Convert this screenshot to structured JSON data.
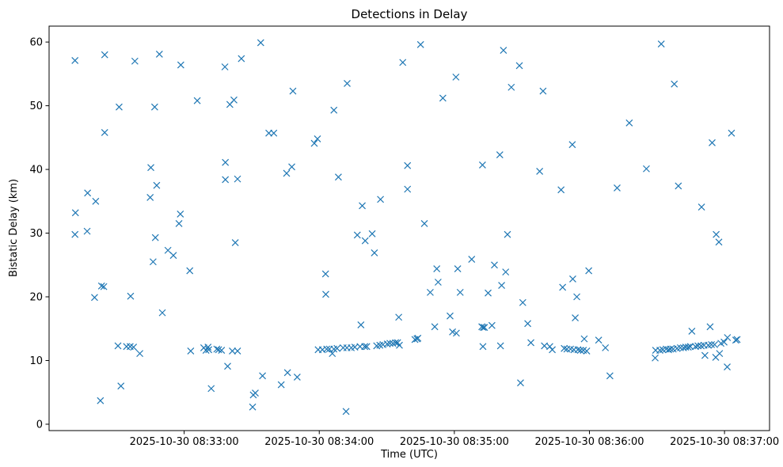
{
  "chart_data": {
    "type": "scatter",
    "title": "Detections in Delay",
    "xlabel": "Time (UTC)",
    "ylabel": "Bistatic Delay (km)",
    "x_unit": "seconds after 2025-10-30 08:32:00",
    "xlim": [
      -30,
      290
    ],
    "ylim": [
      -1,
      62.5
    ],
    "xticks": [
      {
        "value": 30,
        "label": "2025-10-30 08:33:00"
      },
      {
        "value": 90,
        "label": "2025-10-30 08:34:00"
      },
      {
        "value": 150,
        "label": "2025-10-30 08:35:00"
      },
      {
        "value": 210,
        "label": "2025-10-30 08:36:00"
      },
      {
        "value": 270,
        "label": "2025-10-30 08:37:00"
      }
    ],
    "yticks": [
      {
        "value": 0,
        "label": "0"
      },
      {
        "value": 10,
        "label": "10"
      },
      {
        "value": 20,
        "label": "20"
      },
      {
        "value": 30,
        "label": "30"
      },
      {
        "value": 40,
        "label": "40"
      },
      {
        "value": 50,
        "label": "50"
      },
      {
        "value": 60,
        "label": "60"
      }
    ],
    "marker": "x",
    "color": "#1f77b4",
    "series": [
      {
        "name": "detections",
        "points": [
          [
            -18.5,
            57.1
          ],
          [
            -18.5,
            29.8
          ],
          [
            -18.3,
            33.2
          ],
          [
            -12.9,
            36.3
          ],
          [
            -13.1,
            30.3
          ],
          [
            -9.3,
            35.0
          ],
          [
            -9.8,
            19.9
          ],
          [
            -6.7,
            21.7
          ],
          [
            -5.7,
            21.6
          ],
          [
            -5.3,
            58.0
          ],
          [
            -5.3,
            45.8
          ],
          [
            -7.2,
            3.7
          ],
          [
            1.1,
            49.8
          ],
          [
            0.6,
            12.3
          ],
          [
            1.9,
            6.0
          ],
          [
            4.4,
            12.2
          ],
          [
            6.0,
            12.2
          ],
          [
            7.5,
            12.1
          ],
          [
            6.2,
            20.1
          ],
          [
            8.1,
            57.0
          ],
          [
            10.3,
            11.1
          ],
          [
            15.2,
            40.3
          ],
          [
            14.9,
            35.6
          ],
          [
            16.2,
            25.5
          ],
          [
            17.2,
            29.3
          ],
          [
            16.9,
            49.8
          ],
          [
            17.8,
            37.5
          ],
          [
            19.0,
            58.1
          ],
          [
            20.3,
            17.5
          ],
          [
            22.8,
            27.3
          ],
          [
            25.2,
            26.5
          ],
          [
            27.7,
            31.5
          ],
          [
            28.3,
            33.0
          ],
          [
            28.5,
            56.4
          ],
          [
            32.5,
            24.1
          ],
          [
            32.9,
            11.5
          ],
          [
            35.8,
            50.8
          ],
          [
            38.7,
            12.0
          ],
          [
            39.7,
            11.6
          ],
          [
            40.6,
            12.1
          ],
          [
            40.9,
            11.7
          ],
          [
            42.0,
            5.6
          ],
          [
            44.5,
            11.8
          ],
          [
            45.3,
            11.7
          ],
          [
            46.6,
            11.6
          ],
          [
            48.1,
            56.1
          ],
          [
            48.3,
            41.1
          ],
          [
            48.3,
            38.4
          ],
          [
            49.3,
            9.1
          ],
          [
            50.3,
            50.2
          ],
          [
            51.4,
            11.5
          ],
          [
            52.1,
            50.9
          ],
          [
            52.7,
            28.5
          ],
          [
            53.7,
            11.5
          ],
          [
            53.7,
            38.5
          ],
          [
            55.4,
            57.4
          ],
          [
            60.4,
            2.7
          ],
          [
            60.7,
            4.6
          ],
          [
            61.6,
            4.9
          ],
          [
            64.0,
            59.9
          ],
          [
            64.8,
            7.6
          ],
          [
            67.6,
            45.7
          ],
          [
            69.8,
            45.7
          ],
          [
            73.1,
            6.2
          ],
          [
            75.5,
            39.4
          ],
          [
            75.9,
            8.1
          ],
          [
            77.8,
            40.4
          ],
          [
            78.3,
            52.3
          ],
          [
            80.2,
            7.4
          ],
          [
            87.8,
            44.1
          ],
          [
            89.2,
            44.8
          ],
          [
            89.5,
            11.7
          ],
          [
            91.4,
            11.7
          ],
          [
            92.8,
            23.6
          ],
          [
            92.9,
            20.4
          ],
          [
            93.3,
            11.8
          ],
          [
            94.5,
            11.8
          ],
          [
            96.5,
            11.8
          ],
          [
            95.8,
            11.1
          ],
          [
            96.5,
            49.3
          ],
          [
            97.9,
            11.9
          ],
          [
            98.5,
            38.8
          ],
          [
            100.6,
            12.0
          ],
          [
            101.9,
            2.0
          ],
          [
            102.3,
            12.0
          ],
          [
            102.4,
            53.5
          ],
          [
            104.2,
            12.0
          ],
          [
            105.8,
            12.1
          ],
          [
            106.9,
            29.7
          ],
          [
            108.1,
            12.2
          ],
          [
            108.5,
            15.6
          ],
          [
            109.1,
            34.3
          ],
          [
            110.2,
            12.2
          ],
          [
            110.4,
            28.8
          ],
          [
            111.1,
            12.2
          ],
          [
            113.5,
            29.9
          ],
          [
            114.5,
            26.9
          ],
          [
            115.5,
            12.3
          ],
          [
            116.9,
            12.4
          ],
          [
            117.2,
            35.3
          ],
          [
            118.3,
            12.5
          ],
          [
            120.2,
            12.6
          ],
          [
            121.4,
            12.7
          ],
          [
            122.7,
            12.7
          ],
          [
            123.9,
            12.8
          ],
          [
            124.8,
            12.8
          ],
          [
            125.6,
            12.4
          ],
          [
            125.3,
            16.8
          ],
          [
            127.1,
            56.8
          ],
          [
            129.2,
            40.6
          ],
          [
            129.2,
            36.9
          ],
          [
            132.5,
            13.3
          ],
          [
            133.4,
            13.4
          ],
          [
            133.8,
            13.5
          ],
          [
            135.0,
            59.6
          ],
          [
            136.7,
            31.5
          ],
          [
            139.3,
            20.7
          ],
          [
            141.3,
            15.3
          ],
          [
            142.2,
            24.4
          ],
          [
            142.8,
            22.3
          ],
          [
            144.9,
            51.2
          ],
          [
            148.1,
            17.0
          ],
          [
            149.2,
            14.5
          ],
          [
            150.7,
            54.5
          ],
          [
            150.9,
            14.3
          ],
          [
            151.5,
            24.4
          ],
          [
            152.6,
            20.7
          ],
          [
            157.7,
            25.9
          ],
          [
            162.2,
            15.3
          ],
          [
            162.5,
            40.7
          ],
          [
            162.8,
            15.2
          ],
          [
            162.7,
            12.2
          ],
          [
            163.4,
            15.2
          ],
          [
            165.0,
            20.6
          ],
          [
            166.7,
            15.5
          ],
          [
            167.8,
            25.0
          ],
          [
            170.2,
            42.3
          ],
          [
            170.5,
            12.3
          ],
          [
            171.0,
            21.8
          ],
          [
            171.8,
            58.7
          ],
          [
            172.8,
            23.9
          ],
          [
            173.6,
            29.8
          ],
          [
            175.3,
            52.9
          ],
          [
            178.9,
            56.3
          ],
          [
            179.4,
            6.5
          ],
          [
            180.4,
            19.1
          ],
          [
            182.6,
            15.8
          ],
          [
            184.0,
            12.8
          ],
          [
            187.9,
            39.7
          ],
          [
            189.4,
            52.3
          ],
          [
            190.0,
            12.3
          ],
          [
            192.4,
            12.2
          ],
          [
            193.5,
            11.7
          ],
          [
            197.4,
            36.8
          ],
          [
            198.1,
            21.5
          ],
          [
            198.8,
            11.9
          ],
          [
            200.0,
            11.8
          ],
          [
            201.6,
            11.8
          ],
          [
            202.4,
            43.9
          ],
          [
            202.6,
            22.8
          ],
          [
            203.1,
            11.7
          ],
          [
            203.7,
            16.7
          ],
          [
            204.4,
            20.0
          ],
          [
            204.9,
            11.7
          ],
          [
            206.0,
            11.6
          ],
          [
            207.3,
            11.6
          ],
          [
            207.7,
            13.4
          ],
          [
            208.8,
            11.5
          ],
          [
            209.7,
            24.1
          ],
          [
            214.1,
            13.2
          ],
          [
            217.1,
            12.0
          ],
          [
            219.1,
            7.6
          ],
          [
            222.3,
            37.1
          ],
          [
            227.7,
            47.3
          ],
          [
            235.3,
            40.1
          ],
          [
            239.2,
            10.4
          ],
          [
            239.4,
            11.6
          ],
          [
            241.3,
            11.6
          ],
          [
            241.9,
            59.7
          ],
          [
            242.6,
            11.7
          ],
          [
            244.1,
            11.8
          ],
          [
            245.2,
            11.7
          ],
          [
            246.0,
            11.8
          ],
          [
            247.7,
            53.4
          ],
          [
            247.2,
            11.8
          ],
          [
            248.9,
            11.9
          ],
          [
            249.5,
            37.4
          ],
          [
            250.4,
            12.0
          ],
          [
            251.8,
            12.0
          ],
          [
            252.8,
            12.1
          ],
          [
            253.9,
            12.1
          ],
          [
            254.8,
            12.2
          ],
          [
            255.5,
            14.6
          ],
          [
            257.1,
            12.2
          ],
          [
            258.2,
            12.3
          ],
          [
            259.6,
            12.3
          ],
          [
            259.8,
            34.1
          ],
          [
            260.9,
            12.4
          ],
          [
            261.3,
            10.8
          ],
          [
            262.8,
            12.4
          ],
          [
            263.6,
            15.3
          ],
          [
            264.2,
            12.5
          ],
          [
            264.5,
            44.2
          ],
          [
            265.6,
            12.5
          ],
          [
            266.3,
            29.8
          ],
          [
            266.1,
            10.5
          ],
          [
            267.8,
            11.1
          ],
          [
            267.5,
            28.6
          ],
          [
            268.4,
            12.7
          ],
          [
            269.8,
            12.9
          ],
          [
            271.2,
            9.0
          ],
          [
            271.3,
            13.6
          ],
          [
            273.1,
            45.7
          ],
          [
            275.0,
            13.2
          ],
          [
            275.6,
            13.3
          ]
        ]
      }
    ]
  }
}
